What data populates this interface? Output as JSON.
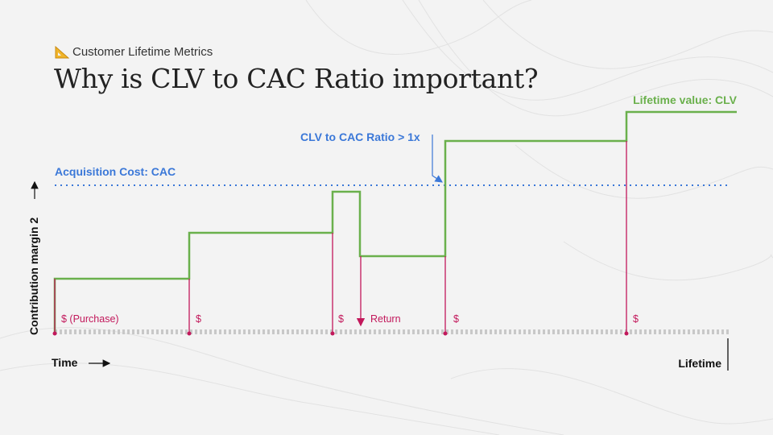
{
  "header": {
    "subtitle": "Customer Lifetime Metrics",
    "subtitle_icon": "triangular-ruler-icon",
    "title": "Why is CLV to CAC Ratio important?"
  },
  "labels": {
    "clv": "Lifetime value: CLV",
    "ratio": "CLV to CAC Ratio > 1x",
    "cac": "Acquisition Cost: CAC",
    "y_axis": "Contribution margin 2",
    "x_axis": "Time",
    "lifetime": "Lifetime"
  },
  "events": [
    {
      "label": "$ (Purchase)",
      "type": "purchase"
    },
    {
      "label": "$",
      "type": "purchase"
    },
    {
      "label": "$",
      "type": "purchase"
    },
    {
      "label": "Return",
      "type": "return"
    },
    {
      "label": "$",
      "type": "purchase"
    },
    {
      "label": "$",
      "type": "purchase"
    }
  ],
  "colors": {
    "clv_line": "#6ab04c",
    "cac_line": "#3b78d8",
    "event": "#c2185b",
    "timeline": "#c8c8c8"
  }
}
